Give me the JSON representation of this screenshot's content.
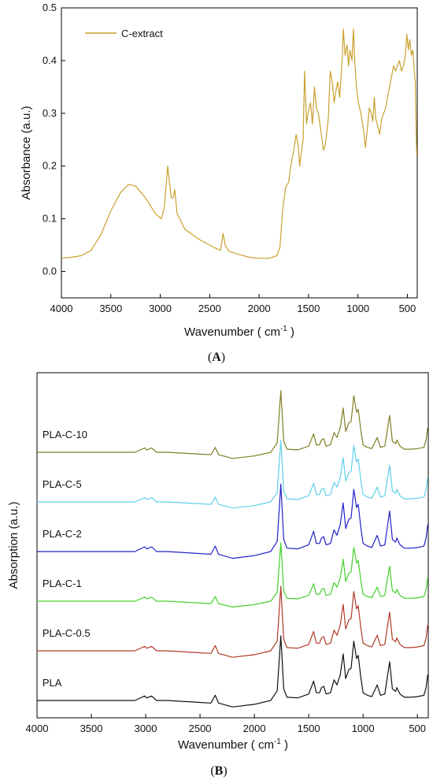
{
  "chart_data": [
    {
      "panel": "A",
      "type": "line",
      "xlabel": "Wavenumber ( cm",
      "xlabel_sup": "-1",
      "xlabel_tail": " )",
      "ylabel": "Absorbance (a.u.)",
      "xlim": [
        4000,
        400
      ],
      "ylim": [
        -0.05,
        0.5
      ],
      "x_ticks": [
        4000,
        3500,
        3000,
        2500,
        2000,
        1500,
        1000,
        500
      ],
      "y_ticks": [
        0.0,
        0.1,
        0.2,
        0.3,
        0.4,
        0.5
      ],
      "y_tick_labels": [
        "0.0",
        "0.1",
        "0.2",
        "0.3",
        "0.4",
        "0.5"
      ],
      "grid": false,
      "legend": "top-left",
      "series": [
        {
          "name": "C-extract",
          "color": "#c9a02e",
          "points": [
            [
              4000,
              0.025
            ],
            [
              3900,
              0.027
            ],
            [
              3800,
              0.03
            ],
            [
              3700,
              0.04
            ],
            [
              3600,
              0.07
            ],
            [
              3500,
              0.115
            ],
            [
              3400,
              0.15
            ],
            [
              3320,
              0.165
            ],
            [
              3250,
              0.162
            ],
            [
              3150,
              0.14
            ],
            [
              3050,
              0.11
            ],
            [
              2990,
              0.1
            ],
            [
              2960,
              0.12
            ],
            [
              2925,
              0.2
            ],
            [
              2890,
              0.14
            ],
            [
              2870,
              0.14
            ],
            [
              2853,
              0.155
            ],
            [
              2830,
              0.11
            ],
            [
              2750,
              0.08
            ],
            [
              2600,
              0.06
            ],
            [
              2450,
              0.045
            ],
            [
              2390,
              0.04
            ],
            [
              2365,
              0.072
            ],
            [
              2340,
              0.048
            ],
            [
              2300,
              0.038
            ],
            [
              2200,
              0.032
            ],
            [
              2100,
              0.027
            ],
            [
              2000,
              0.025
            ],
            [
              1900,
              0.025
            ],
            [
              1820,
              0.03
            ],
            [
              1790,
              0.045
            ],
            [
              1760,
              0.12
            ],
            [
              1730,
              0.16
            ],
            [
              1700,
              0.17
            ],
            [
              1680,
              0.2
            ],
            [
              1650,
              0.23
            ],
            [
              1625,
              0.26
            ],
            [
              1605,
              0.24
            ],
            [
              1590,
              0.2
            ],
            [
              1570,
              0.23
            ],
            [
              1555,
              0.25
            ],
            [
              1540,
              0.38
            ],
            [
              1520,
              0.28
            ],
            [
              1505,
              0.3
            ],
            [
              1480,
              0.32
            ],
            [
              1460,
              0.28
            ],
            [
              1440,
              0.35
            ],
            [
              1420,
              0.31
            ],
            [
              1400,
              0.3
            ],
            [
              1370,
              0.26
            ],
            [
              1350,
              0.23
            ],
            [
              1330,
              0.24
            ],
            [
              1300,
              0.29
            ],
            [
              1280,
              0.38
            ],
            [
              1260,
              0.36
            ],
            [
              1240,
              0.32
            ],
            [
              1225,
              0.34
            ],
            [
              1205,
              0.36
            ],
            [
              1185,
              0.33
            ],
            [
              1160,
              0.4
            ],
            [
              1148,
              0.46
            ],
            [
              1130,
              0.41
            ],
            [
              1110,
              0.43
            ],
            [
              1095,
              0.39
            ],
            [
              1080,
              0.42
            ],
            [
              1060,
              0.4
            ],
            [
              1045,
              0.46
            ],
            [
              1030,
              0.39
            ],
            [
              1015,
              0.35
            ],
            [
              995,
              0.32
            ],
            [
              970,
              0.3
            ],
            [
              945,
              0.27
            ],
            [
              925,
              0.235
            ],
            [
              905,
              0.27
            ],
            [
              885,
              0.31
            ],
            [
              865,
              0.3
            ],
            [
              850,
              0.285
            ],
            [
              835,
              0.33
            ],
            [
              820,
              0.29
            ],
            [
              805,
              0.28
            ],
            [
              780,
              0.26
            ],
            [
              760,
              0.29
            ],
            [
              740,
              0.3
            ],
            [
              720,
              0.31
            ],
            [
              700,
              0.33
            ],
            [
              680,
              0.35
            ],
            [
              660,
              0.37
            ],
            [
              640,
              0.39
            ],
            [
              620,
              0.38
            ],
            [
              600,
              0.39
            ],
            [
              580,
              0.4
            ],
            [
              560,
              0.38
            ],
            [
              540,
              0.39
            ],
            [
              520,
              0.41
            ],
            [
              505,
              0.45
            ],
            [
              490,
              0.42
            ],
            [
              475,
              0.44
            ],
            [
              460,
              0.41
            ],
            [
              445,
              0.42
            ],
            [
              430,
              0.38
            ],
            [
              420,
              0.36
            ],
            [
              410,
              0.26
            ],
            [
              405,
              0.22
            ]
          ]
        }
      ]
    },
    {
      "panel": "B",
      "type": "line",
      "xlabel": "Wavenumber ( cm",
      "xlabel_sup": "-1",
      "xlabel_tail": " )",
      "ylabel": "Absorption (a.u.)",
      "xlim": [
        4000,
        400
      ],
      "x_ticks": [
        4000,
        3500,
        3000,
        2500,
        2000,
        1500,
        1000,
        500
      ],
      "y_ticks_shown": false,
      "grid": false,
      "legend": "labels next to curves",
      "shape": [
        [
          4000,
          0.0
        ],
        [
          3100,
          0.0
        ],
        [
          3010,
          0.07
        ],
        [
          2990,
          0.04
        ],
        [
          2945,
          0.07
        ],
        [
          2900,
          0.0
        ],
        [
          2800,
          0.0
        ],
        [
          2400,
          -0.04
        ],
        [
          2360,
          0.08
        ],
        [
          2330,
          -0.04
        ],
        [
          2200,
          -0.1
        ],
        [
          2000,
          -0.06
        ],
        [
          1850,
          0.0
        ],
        [
          1790,
          0.15
        ],
        [
          1757,
          1.0
        ],
        [
          1730,
          0.18
        ],
        [
          1700,
          0.05
        ],
        [
          1600,
          0.04
        ],
        [
          1500,
          0.1
        ],
        [
          1455,
          0.3
        ],
        [
          1430,
          0.12
        ],
        [
          1400,
          0.12
        ],
        [
          1382,
          0.2
        ],
        [
          1362,
          0.22
        ],
        [
          1340,
          0.1
        ],
        [
          1300,
          0.12
        ],
        [
          1267,
          0.32
        ],
        [
          1240,
          0.24
        ],
        [
          1210,
          0.4
        ],
        [
          1183,
          0.72
        ],
        [
          1160,
          0.34
        ],
        [
          1130,
          0.48
        ],
        [
          1110,
          0.5
        ],
        [
          1085,
          0.92
        ],
        [
          1060,
          0.65
        ],
        [
          1045,
          0.7
        ],
        [
          1020,
          0.35
        ],
        [
          1000,
          0.12
        ],
        [
          960,
          0.08
        ],
        [
          920,
          0.06
        ],
        [
          870,
          0.24
        ],
        [
          840,
          0.08
        ],
        [
          800,
          0.1
        ],
        [
          756,
          0.6
        ],
        [
          730,
          0.18
        ],
        [
          700,
          0.14
        ],
        [
          690,
          0.2
        ],
        [
          660,
          0.1
        ],
        [
          620,
          0.05
        ],
        [
          560,
          0.05
        ],
        [
          500,
          0.06
        ],
        [
          440,
          0.08
        ],
        [
          420,
          0.2
        ],
        [
          405,
          0.4
        ]
      ],
      "series": [
        {
          "name": "PLA-C-10",
          "color": "#7f7f24",
          "offset": 5,
          "scale": 1.0
        },
        {
          "name": "PLA-C-5",
          "color": "#5fd0e8",
          "offset": 4,
          "scale": 1.0
        },
        {
          "name": "PLA-C-2",
          "color": "#2222c8",
          "offset": 3,
          "scale": 1.1
        },
        {
          "name": "PLA-C-1",
          "color": "#44d02a",
          "offset": 2,
          "scale": 0.95
        },
        {
          "name": "PLA-C-0.5",
          "color": "#b03a28",
          "offset": 1,
          "scale": 1.05
        },
        {
          "name": "PLA",
          "color": "#111111",
          "offset": 0,
          "scale": 1.05
        }
      ]
    }
  ],
  "panel_labels": {
    "a": {
      "open": "(",
      "letter": "A",
      "close": ")"
    },
    "b": {
      "open": "(",
      "letter": "B",
      "close": ")"
    }
  }
}
